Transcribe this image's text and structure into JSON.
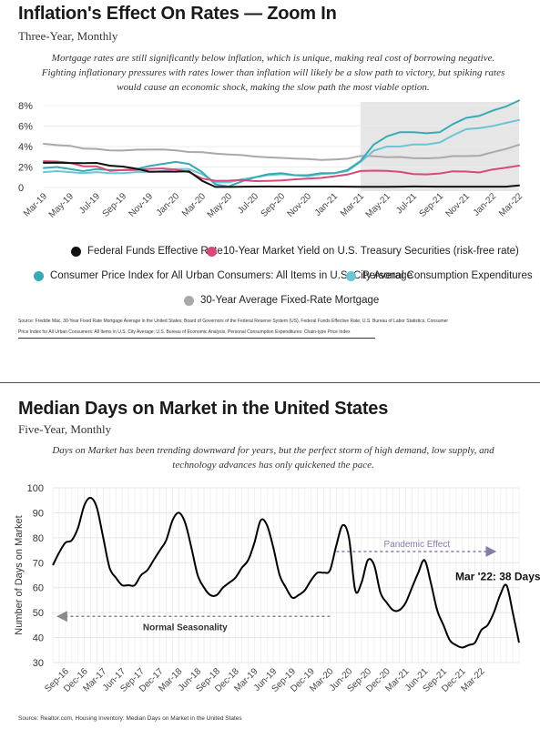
{
  "colors": {
    "fed_funds": "#111111",
    "treasury": "#d64a7a",
    "cpi": "#3aa9b4",
    "pce": "#6cc5d3",
    "mortgage": "#a9a9a9",
    "shade": "#e6e6e6",
    "dom_line": "#000000",
    "annotation": "#8a8a8a",
    "pandemic": "#8a7aa8"
  },
  "top": {
    "title": "Inflation's Effect On Rates — Zoom In",
    "subtitle": "Three-Year, Monthly",
    "note_line1": "Mortgage rates are still significantly below inflation, which is unique, making real cost of borrowing negative.",
    "note_line2": "Fighting inflationary pressures with rates lower than inflation will likely be a slow path to victory, but spiking rates",
    "note_line3": "would cause an economic shock, making the slow path the most viable option.",
    "source_line1": "Source: Freddie Mac, 30-Year Fixed Rate Mortgage Average in the United States; Board of Governors of the Federal Reserve System (US), Federal Funds Effective Rate; U.S. Bureau of Labor Statistics, Consumer",
    "source_line2": "Price Index for All Urban Consumers: All Items in U.S. City Average; U.S. Bureau of Economic Analysis, Personal Consumption Expenditures: Chain-type Price Index",
    "legend": [
      {
        "label": "Federal Funds Effective Rate",
        "color": "#111111"
      },
      {
        "label": "10-Year Market Yield on U.S. Treasury Securities (risk-free rate)",
        "color": "#d64a7a"
      },
      {
        "label": "Consumer Price Index for All Urban Consumers: All Items in U.S. City Average",
        "color": "#3aa9b4"
      },
      {
        "label": "Personal Consumption Expenditures",
        "color": "#6cc5d3"
      },
      {
        "label": "30-Year Average Fixed-Rate Mortgage",
        "color": "#a9a9a9"
      }
    ]
  },
  "bottom": {
    "title": "Median Days on Market in the United States",
    "subtitle": "Five-Year, Monthly",
    "note_line1": "Days on Market has been trending downward for years, but the perfect storm of high demand, low supply, and",
    "note_line2": "technology advances has only quickened the pace.",
    "source": "Source: Realtor.com, Housing Inventory: Median Days on Market in the United States",
    "pandemic_label": "Pandemic Effect",
    "normal_label": "Normal Seasonality",
    "callout": "Mar '22: 38 Days"
  },
  "chart_data": [
    {
      "type": "line",
      "title": "Inflation's Effect On Rates — Zoom In",
      "subtitle": "Three-Year, Monthly",
      "x": [
        "Mar-19",
        "Apr-19",
        "May-19",
        "Jun-19",
        "Jul-19",
        "Aug-19",
        "Sep-19",
        "Oct-19",
        "Nov-19",
        "Dec-19",
        "Jan-20",
        "Feb-20",
        "Mar-20",
        "Apr-20",
        "May-20",
        "Jun-20",
        "Jul-20",
        "Aug-20",
        "Sep-20",
        "Oct-20",
        "Nov-20",
        "Dec-20",
        "Jan-21",
        "Feb-21",
        "Mar-21",
        "Apr-21",
        "May-21",
        "Jun-21",
        "Jul-21",
        "Aug-21",
        "Sep-21",
        "Oct-21",
        "Nov-21",
        "Dec-21",
        "Jan-22",
        "Feb-22",
        "Mar-22"
      ],
      "x_tick_labels": [
        "Mar-19",
        "May-19",
        "Jul-19",
        "Sep-19",
        "Nov-19",
        "Jan-20",
        "Mar-20",
        "May-20",
        "Jul-20",
        "Sep-20",
        "Nov-20",
        "Jan-21",
        "Mar-21",
        "May-21",
        "Jul-21",
        "Sep-21",
        "Nov-21",
        "Jan-22",
        "Mar-22"
      ],
      "y_tick_labels": [
        "0",
        "2%",
        "4%",
        "6%",
        "8%"
      ],
      "ylim": [
        0,
        8
      ],
      "shaded_region": [
        "Mar-21",
        "Mar-22"
      ],
      "series": [
        {
          "name": "Federal Funds Effective Rate",
          "values": [
            2.41,
            2.42,
            2.39,
            2.38,
            2.4,
            2.13,
            2.04,
            1.83,
            1.55,
            1.55,
            1.55,
            1.58,
            0.65,
            0.05,
            0.05,
            0.08,
            0.09,
            0.1,
            0.09,
            0.09,
            0.09,
            0.09,
            0.09,
            0.08,
            0.07,
            0.07,
            0.06,
            0.08,
            0.1,
            0.09,
            0.08,
            0.08,
            0.08,
            0.08,
            0.08,
            0.08,
            0.2
          ]
        },
        {
          "name": "10-Year Market Yield on U.S. Treasury Securities (risk-free rate)",
          "values": [
            2.57,
            2.53,
            2.4,
            2.07,
            2.06,
            1.63,
            1.7,
            1.71,
            1.81,
            1.86,
            1.76,
            1.5,
            0.87,
            0.66,
            0.67,
            0.73,
            0.62,
            0.65,
            0.68,
            0.79,
            0.87,
            0.93,
            1.08,
            1.26,
            1.61,
            1.64,
            1.62,
            1.52,
            1.32,
            1.28,
            1.37,
            1.58,
            1.56,
            1.47,
            1.76,
            1.93,
            2.13
          ]
        },
        {
          "name": "Consumer Price Index for All Urban Consumers: All Items in U.S. City Average",
          "values": [
            1.9,
            2.0,
            1.8,
            1.6,
            1.8,
            1.7,
            1.7,
            1.8,
            2.1,
            2.3,
            2.5,
            2.3,
            1.5,
            0.3,
            0.1,
            0.6,
            1.0,
            1.3,
            1.4,
            1.2,
            1.2,
            1.4,
            1.4,
            1.7,
            2.6,
            4.2,
            5.0,
            5.4,
            5.4,
            5.3,
            5.4,
            6.2,
            6.8,
            7.0,
            7.5,
            7.9,
            8.5
          ]
        },
        {
          "name": "Personal Consumption Expenditures",
          "values": [
            1.5,
            1.6,
            1.5,
            1.4,
            1.5,
            1.4,
            1.4,
            1.5,
            1.5,
            1.6,
            1.8,
            1.8,
            1.3,
            0.5,
            0.5,
            0.8,
            1.0,
            1.2,
            1.3,
            1.2,
            1.1,
            1.3,
            1.4,
            1.6,
            2.5,
            3.6,
            4.0,
            4.0,
            4.2,
            4.2,
            4.4,
            5.1,
            5.7,
            5.8,
            6.0,
            6.3,
            6.6
          ]
        },
        {
          "name": "30-Year Average Fixed-Rate Mortgage",
          "values": [
            4.27,
            4.14,
            4.07,
            3.8,
            3.77,
            3.62,
            3.61,
            3.69,
            3.7,
            3.72,
            3.62,
            3.47,
            3.45,
            3.31,
            3.23,
            3.16,
            3.02,
            2.94,
            2.89,
            2.83,
            2.77,
            2.68,
            2.74,
            2.81,
            3.08,
            3.06,
            2.96,
            2.98,
            2.87,
            2.84,
            2.9,
            3.07,
            3.07,
            3.1,
            3.45,
            3.76,
            4.17
          ]
        }
      ]
    },
    {
      "type": "line",
      "title": "Median Days on Market in the United States",
      "subtitle": "Five-Year, Monthly",
      "ylabel": "Number of Days on Market",
      "ylim": [
        30,
        100
      ],
      "y_tick_labels": [
        "30",
        "40",
        "50",
        "60",
        "70",
        "80",
        "90",
        "100"
      ],
      "x_tick_labels": [
        "Sep-16",
        "Dec-16",
        "Mar-17",
        "Jun-17",
        "Sep-17",
        "Dec-17",
        "Mar-18",
        "Jun-18",
        "Sep-18",
        "Dec-18",
        "Mar-19",
        "Jun-19",
        "Sep-19",
        "Dec-19",
        "Mar-20",
        "Jun-20",
        "Sep-20",
        "Dec-20",
        "Mar-21",
        "Jun-21",
        "Sep-21",
        "Dec-21",
        "Mar-22"
      ],
      "x_start": "Jul-16",
      "series": [
        {
          "name": "Median Days on Market",
          "values": [
            69,
            74,
            78,
            79,
            84,
            93,
            96,
            92,
            80,
            68,
            64,
            61,
            61,
            61,
            65,
            67,
            71,
            75,
            79,
            87,
            90,
            86,
            76,
            65,
            60,
            57,
            57,
            60,
            62,
            64,
            68,
            71,
            78,
            87,
            85,
            76,
            65,
            60,
            56,
            57,
            59,
            63,
            66,
            66,
            67,
            77,
            85,
            80,
            59,
            62,
            71,
            69,
            58,
            54,
            51,
            51,
            54,
            60,
            66,
            71,
            62,
            51,
            45,
            39,
            37,
            36,
            37,
            38,
            43,
            45,
            50,
            57,
            61,
            50,
            38
          ]
        }
      ],
      "annotations": [
        {
          "text": "Pandemic Effect",
          "from": "Apr-20",
          "to": "Mar-22"
        },
        {
          "text": "Normal Seasonality",
          "from": "Sep-16",
          "to": "Mar-20"
        },
        {
          "text": "Mar '22: 38 Days"
        }
      ]
    }
  ]
}
